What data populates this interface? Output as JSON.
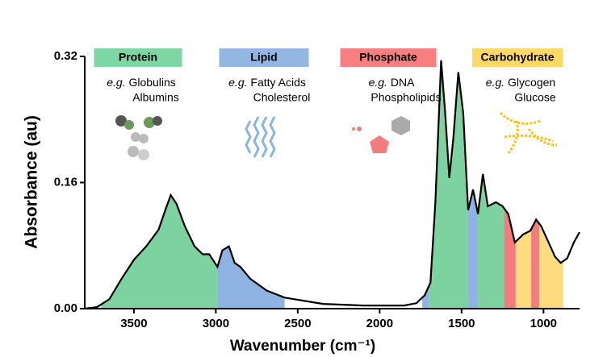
{
  "chart_data": {
    "type": "line",
    "xlabel": "Wavenumber (cm⁻¹)",
    "ylabel": "Absorbance (au)",
    "x": [
      3800,
      3725,
      3650,
      3575,
      3500,
      3425,
      3350,
      3300,
      3275,
      3240,
      3190,
      3130,
      3080,
      3040,
      2990,
      2960,
      2920,
      2885,
      2850,
      2790,
      2690,
      2580,
      2345,
      2100,
      1850,
      1775,
      1725,
      1690,
      1660,
      1625,
      1600,
      1575,
      1550,
      1520,
      1490,
      1460,
      1430,
      1400,
      1370,
      1340,
      1290,
      1250,
      1215,
      1175,
      1125,
      1080,
      1045,
      1015,
      980,
      930,
      895,
      855,
      815,
      780
    ],
    "values": [
      0,
      0.002,
      0.012,
      0.038,
      0.062,
      0.079,
      0.1,
      0.13,
      0.144,
      0.133,
      0.105,
      0.079,
      0.069,
      0.069,
      0.053,
      0.074,
      0.079,
      0.058,
      0.053,
      0.038,
      0.023,
      0.014,
      0.006,
      0.004,
      0.004,
      0.007,
      0.017,
      0.033,
      0.135,
      0.315,
      0.248,
      0.166,
      0.217,
      0.3,
      0.248,
      0.125,
      0.151,
      0.12,
      0.171,
      0.13,
      0.135,
      0.13,
      0.12,
      0.084,
      0.094,
      0.099,
      0.113,
      0.105,
      0.089,
      0.066,
      0.058,
      0.064,
      0.084,
      0.097
    ],
    "color": "#000000",
    "xlim": [
      3800,
      780
    ],
    "xticks": [
      3500,
      3000,
      2500,
      2000,
      1500,
      1000
    ],
    "ylim": [
      0,
      0.32
    ],
    "yticks": [
      {
        "value": 0,
        "label": "0.00"
      },
      {
        "value": 0.16,
        "label": "0.16"
      },
      {
        "value": 0.32,
        "label": "0.32"
      }
    ],
    "regions": [
      {
        "from": 3700,
        "to": 2990,
        "color": "#7dd3a0"
      },
      {
        "from": 2990,
        "to": 2580,
        "color": "#8fb4e3"
      },
      {
        "from": 1740,
        "to": 1700,
        "color": "#8fb4e3"
      },
      {
        "from": 1700,
        "to": 1460,
        "color": "#7dd3a0"
      },
      {
        "from": 1460,
        "to": 1400,
        "color": "#8fb4e3"
      },
      {
        "from": 1400,
        "to": 1240,
        "color": "#7dd3a0"
      },
      {
        "from": 1240,
        "to": 1170,
        "color": "#f47c7c"
      },
      {
        "from": 1170,
        "to": 1075,
        "color": "#fddc7d"
      },
      {
        "from": 1075,
        "to": 1025,
        "color": "#f47c7c"
      },
      {
        "from": 1025,
        "to": 880,
        "color": "#fddc7d"
      }
    ],
    "example_prefix": "e.g.",
    "annotations": [
      {
        "label": "Protein",
        "color": "#7ed6a2",
        "examples": [
          "Globulins",
          "Albumins"
        ]
      },
      {
        "label": "Lipid",
        "color": "#92b7e3",
        "examples": [
          "Fatty Acids",
          "Cholesterol"
        ]
      },
      {
        "label": "Phosphate",
        "color": "#f77f7f",
        "examples": [
          "DNA",
          "Phospholipids"
        ]
      },
      {
        "label": "Carbohydrate",
        "color": "#ffd966",
        "examples": [
          "Glycogen",
          "Glucose"
        ]
      }
    ]
  }
}
